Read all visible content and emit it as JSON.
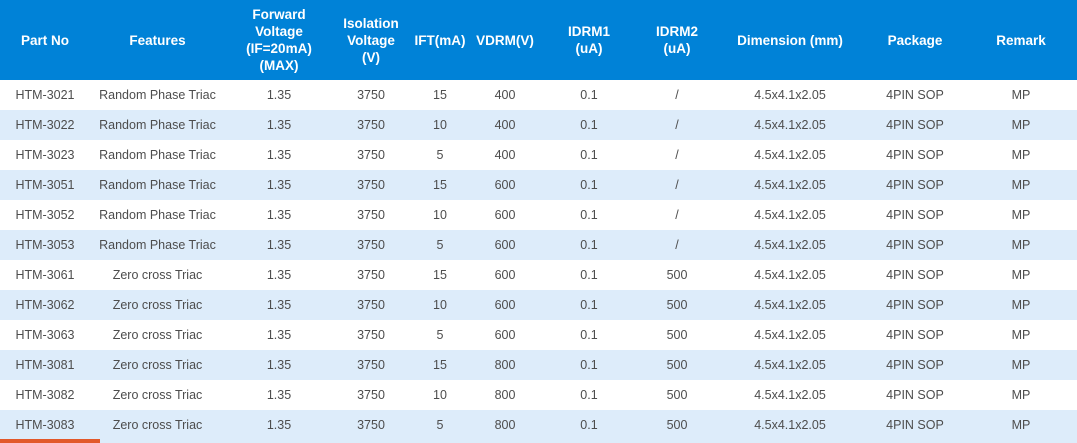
{
  "table": {
    "columns": [
      {
        "key": "part_no",
        "label": "Part No"
      },
      {
        "key": "features",
        "label": "Features"
      },
      {
        "key": "forward_voltage",
        "label": "Forward\nVoltage\n(IF=20mA)\n(MAX)"
      },
      {
        "key": "isolation_voltage",
        "label": "Isolation\nVoltage\n(V)"
      },
      {
        "key": "ift",
        "label": "IFT(mA)"
      },
      {
        "key": "vdrm",
        "label": "VDRM(V)"
      },
      {
        "key": "idrm1",
        "label": "IDRM1\n(uA)"
      },
      {
        "key": "idrm2",
        "label": "IDRM2\n(uA)"
      },
      {
        "key": "dimension",
        "label": "Dimension (mm)"
      },
      {
        "key": "package",
        "label": "Package"
      },
      {
        "key": "remark",
        "label": "Remark"
      }
    ],
    "rows": [
      [
        "HTM-3021",
        "Random Phase Triac",
        "1.35",
        "3750",
        "15",
        "400",
        "0.1",
        "/",
        "4.5x4.1x2.05",
        "4PIN SOP",
        "MP"
      ],
      [
        "HTM-3022",
        "Random Phase Triac",
        "1.35",
        "3750",
        "10",
        "400",
        "0.1",
        "/",
        "4.5x4.1x2.05",
        "4PIN SOP",
        "MP"
      ],
      [
        "HTM-3023",
        "Random Phase Triac",
        "1.35",
        "3750",
        "5",
        "400",
        "0.1",
        "/",
        "4.5x4.1x2.05",
        "4PIN SOP",
        "MP"
      ],
      [
        "HTM-3051",
        "Random Phase Triac",
        "1.35",
        "3750",
        "15",
        "600",
        "0.1",
        "/",
        "4.5x4.1x2.05",
        "4PIN SOP",
        "MP"
      ],
      [
        "HTM-3052",
        "Random Phase Triac",
        "1.35",
        "3750",
        "10",
        "600",
        "0.1",
        "/",
        "4.5x4.1x2.05",
        "4PIN SOP",
        "MP"
      ],
      [
        "HTM-3053",
        "Random Phase Triac",
        "1.35",
        "3750",
        "5",
        "600",
        "0.1",
        "/",
        "4.5x4.1x2.05",
        "4PIN SOP",
        "MP"
      ],
      [
        "HTM-3061",
        "Zero cross Triac",
        "1.35",
        "3750",
        "15",
        "600",
        "0.1",
        "500",
        "4.5x4.1x2.05",
        "4PIN SOP",
        "MP"
      ],
      [
        "HTM-3062",
        "Zero cross Triac",
        "1.35",
        "3750",
        "10",
        "600",
        "0.1",
        "500",
        "4.5x4.1x2.05",
        "4PIN SOP",
        "MP"
      ],
      [
        "HTM-3063",
        "Zero cross Triac",
        "1.35",
        "3750",
        "5",
        "600",
        "0.1",
        "500",
        "4.5x4.1x2.05",
        "4PIN SOP",
        "MP"
      ],
      [
        "HTM-3081",
        "Zero cross Triac",
        "1.35",
        "3750",
        "15",
        "800",
        "0.1",
        "500",
        "4.5x4.1x2.05",
        "4PIN SOP",
        "MP"
      ],
      [
        "HTM-3082",
        "Zero cross Triac",
        "1.35",
        "3750",
        "10",
        "800",
        "0.1",
        "500",
        "4.5x4.1x2.05",
        "4PIN SOP",
        "MP"
      ],
      [
        "HTM-3083",
        "Zero cross Triac",
        "1.35",
        "3750",
        "5",
        "800",
        "0.1",
        "500",
        "4.5x4.1x2.05",
        "4PIN SOP",
        "MP"
      ]
    ]
  },
  "colors": {
    "header_bg": "#0082d7",
    "header_text": "#ffffff",
    "row_bg": "#ffffff",
    "row_alt_bg": "#ddecfa",
    "body_text": "#4d4d4d",
    "accent_bar": "#e2582a"
  }
}
